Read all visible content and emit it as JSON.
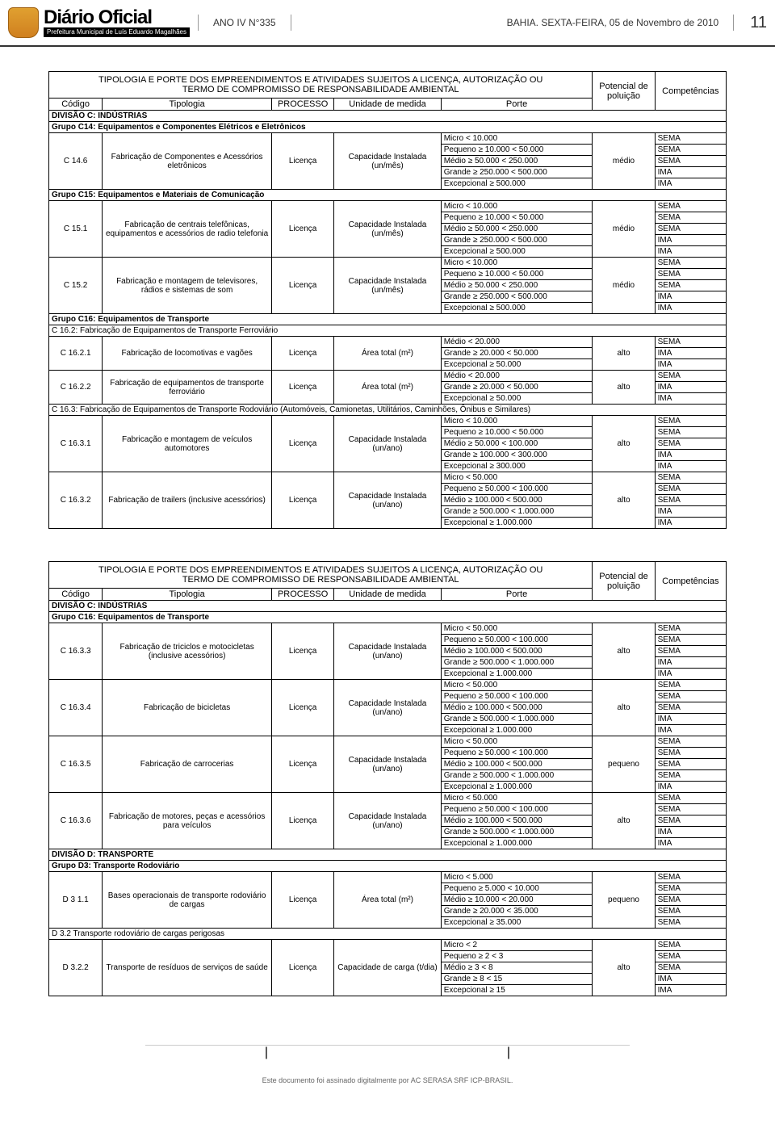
{
  "header": {
    "masthead_title": "Diário Oficial",
    "masthead_sub": "Prefeitura Municipal de Luís Eduardo Magalhães",
    "issue": "ANO IV N°335",
    "dateline": "BAHIA. SEXTA-FEIRA, 05 de Novembro de 2010",
    "page": "11"
  },
  "table_title_l1": "TIPOLOGIA E PORTE DOS EMPREENDIMENTOS E ATIVIDADES SUJEITOS A LICENÇA, AUTORIZAÇÃO OU",
  "table_title_l2": "TERMO DE COMPROMISSO DE RESPONSABILIDADE AMBIENTAL",
  "headers": {
    "codigo": "Código",
    "tipologia": "Tipologia",
    "processo": "PROCESSO",
    "unidade": "Unidade de medida",
    "porte": "Porte",
    "potencial": "Potencial de poluição",
    "comp": "Competências"
  },
  "sections1": [
    "DIVISÃO C: INDÚSTRIAS",
    "Grupo C14: Equipamentos e Componentes Elétricos e Eletrônicos"
  ],
  "t1_rows": [
    {
      "codigo": "C 14.6",
      "tip": "Fabricação de Componentes e Acessórios eletrônicos",
      "proc": "Licença",
      "unid": "Capacidade Instalada (un/mês)",
      "pot": "médio",
      "porte": [
        [
          "Micro < 10.000",
          "SEMA"
        ],
        [
          "Pequeno ≥ 10.000 < 50.000",
          "SEMA"
        ],
        [
          "Médio ≥ 50.000 < 250.000",
          "SEMA"
        ],
        [
          "Grande ≥ 250.000 < 500.000",
          "IMA"
        ],
        [
          "Excepcional ≥ 500.000",
          "IMA"
        ]
      ]
    }
  ],
  "section_c15": "Grupo C15: Equipamentos e Materiais de Comunicação",
  "t1_c15": [
    {
      "codigo": "C 15.1",
      "tip": "Fabricação de centrais telefônicas, equipamentos e acessórios de radio telefonia",
      "proc": "Licença",
      "unid": "Capacidade Instalada (un/mês)",
      "pot": "médio",
      "porte": [
        [
          "Micro < 10.000",
          "SEMA"
        ],
        [
          "Pequeno ≥ 10.000 < 50.000",
          "SEMA"
        ],
        [
          "Médio ≥ 50.000 < 250.000",
          "SEMA"
        ],
        [
          "Grande ≥ 250.000 < 500.000",
          "IMA"
        ],
        [
          "Excepcional ≥ 500.000",
          "IMA"
        ]
      ]
    },
    {
      "codigo": "C 15.2",
      "tip": "Fabricação e montagem de televisores, rádios e sistemas de som",
      "proc": "Licença",
      "unid": "Capacidade Instalada (un/mês)",
      "pot": "médio",
      "porte": [
        [
          "Micro < 10.000",
          "SEMA"
        ],
        [
          "Pequeno ≥ 10.000 < 50.000",
          "SEMA"
        ],
        [
          "Médio ≥ 50.000 < 250.000",
          "SEMA"
        ],
        [
          "Grande ≥ 250.000 < 500.000",
          "IMA"
        ],
        [
          "Excepcional ≥ 500.000",
          "IMA"
        ]
      ]
    }
  ],
  "section_c16": "Grupo C16: Equipamentos de Transporte",
  "section_c162": "C 16.2: Fabricação de Equipamentos de Transporte Ferroviário",
  "t1_c162": [
    {
      "codigo": "C 16.2.1",
      "tip": "Fabricação de locomotivas e vagões",
      "proc": "Licença",
      "unid": "Área total (m²)",
      "pot": "alto",
      "porte": [
        [
          "Médio < 20.000",
          "SEMA"
        ],
        [
          "Grande ≥ 20.000 < 50.000",
          "IMA"
        ],
        [
          "Excepcional ≥ 50.000",
          "IMA"
        ]
      ]
    },
    {
      "codigo": "C 16.2.2",
      "tip": "Fabricação de equipamentos de transporte ferroviário",
      "proc": "Licença",
      "unid": "Área total (m²)",
      "pot": "alto",
      "porte": [
        [
          "Médio < 20.000",
          "SEMA"
        ],
        [
          "Grande ≥ 20.000 < 50.000",
          "IMA"
        ],
        [
          "Excepcional ≥ 50.000",
          "IMA"
        ]
      ]
    }
  ],
  "section_c163": "C 16.3: Fabricação de Equipamentos de Transporte Rodoviário (Automóveis, Camionetas, Utilitários, Caminhões, Ônibus e Similares)",
  "t1_c163": [
    {
      "codigo": "C 16.3.1",
      "tip": "Fabricação e montagem de veículos automotores",
      "proc": "Licença",
      "unid": "Capacidade Instalada (un/ano)",
      "pot": "alto",
      "porte": [
        [
          "Micro < 10.000",
          "SEMA"
        ],
        [
          "Pequeno ≥ 10.000 < 50.000",
          "SEMA"
        ],
        [
          "Médio ≥ 50.000 < 100.000",
          "SEMA"
        ],
        [
          "Grande ≥ 100.000 < 300.000",
          "IMA"
        ],
        [
          "Excepcional ≥ 300.000",
          "IMA"
        ]
      ]
    },
    {
      "codigo": "C 16.3.2",
      "tip": "Fabricação de trailers (inclusive acessórios)",
      "proc": "Licença",
      "unid": "Capacidade Instalada (un/ano)",
      "pot": "alto",
      "porte": [
        [
          "Micro < 50.000",
          "SEMA"
        ],
        [
          "Pequeno ≥ 50.000 < 100.000",
          "SEMA"
        ],
        [
          "Médio ≥ 100.000 < 500.000",
          "SEMA"
        ],
        [
          "Grande ≥ 500.000 < 1.000.000",
          "IMA"
        ],
        [
          "Excepcional ≥ 1.000.000",
          "IMA"
        ]
      ]
    }
  ],
  "sections2": [
    "DIVISÃO C: INDÚSTRIAS",
    "Grupo C16: Equipamentos de Transporte"
  ],
  "t2_rows": [
    {
      "codigo": "C 16.3.3",
      "tip": "Fabricação de triciclos e motocicletas (inclusive acessórios)",
      "proc": "Licença",
      "unid": "Capacidade Instalada (un/ano)",
      "pot": "alto",
      "porte": [
        [
          "Micro < 50.000",
          "SEMA"
        ],
        [
          "Pequeno ≥ 50.000 < 100.000",
          "SEMA"
        ],
        [
          "Médio ≥ 100.000 < 500.000",
          "SEMA"
        ],
        [
          "Grande ≥ 500.000 < 1.000.000",
          "IMA"
        ],
        [
          "Excepcional ≥ 1.000.000",
          "IMA"
        ]
      ]
    },
    {
      "codigo": "C 16.3.4",
      "tip": "Fabricação de bicicletas",
      "proc": "Licença",
      "unid": "Capacidade Instalada (un/ano)",
      "pot": "alto",
      "porte": [
        [
          "Micro < 50.000",
          "SEMA"
        ],
        [
          "Pequeno ≥ 50.000 < 100.000",
          "SEMA"
        ],
        [
          "Médio ≥ 100.000 < 500.000",
          "SEMA"
        ],
        [
          "Grande ≥ 500.000 < 1.000.000",
          "IMA"
        ],
        [
          "Excepcional ≥ 1.000.000",
          "IMA"
        ]
      ]
    },
    {
      "codigo": "C 16.3.5",
      "tip": "Fabricação de carrocerias",
      "proc": "Licença",
      "unid": "Capacidade Instalada (un/ano)",
      "pot": "pequeno",
      "porte": [
        [
          "Micro < 50.000",
          "SEMA"
        ],
        [
          "Pequeno ≥ 50.000 < 100.000",
          "SEMA"
        ],
        [
          "Médio ≥ 100.000 < 500.000",
          "SEMA"
        ],
        [
          "Grande ≥ 500.000 < 1.000.000",
          "SEMA"
        ],
        [
          "Excepcional ≥ 1.000.000",
          "IMA"
        ]
      ]
    },
    {
      "codigo": "C 16.3.6",
      "tip": "Fabricação de motores, peças e acessórios para veículos",
      "proc": "Licença",
      "unid": "Capacidade Instalada (un/ano)",
      "pot": "alto",
      "porte": [
        [
          "Micro < 50.000",
          "SEMA"
        ],
        [
          "Pequeno ≥ 50.000 < 100.000",
          "SEMA"
        ],
        [
          "Médio ≥ 100.000 < 500.000",
          "SEMA"
        ],
        [
          "Grande ≥ 500.000 < 1.000.000",
          "IMA"
        ],
        [
          "Excepcional ≥ 1.000.000",
          "IMA"
        ]
      ]
    }
  ],
  "section_d": "DIVISÃO D: TRANSPORTE",
  "section_d3": "Grupo D3: Transporte Rodoviário",
  "t2_d3": [
    {
      "codigo": "D 3 1.1",
      "tip": "Bases operacionais de transporte rodoviário de cargas",
      "proc": "Licença",
      "unid": "Área total (m²)",
      "pot": "pequeno",
      "porte": [
        [
          "Micro < 5.000",
          "SEMA"
        ],
        [
          "Pequeno ≥ 5.000 < 10.000",
          "SEMA"
        ],
        [
          "Médio ≥ 10.000 < 20.000",
          "SEMA"
        ],
        [
          "Grande ≥ 20.000 < 35.000",
          "SEMA"
        ],
        [
          "Excepcional ≥ 35.000",
          "SEMA"
        ]
      ]
    }
  ],
  "section_d32": "D 3.2 Transporte rodoviário de cargas perigosas",
  "t2_d32": [
    {
      "codigo": "D 3.2.2",
      "tip": "Transporte de resíduos de serviços de saúde",
      "proc": "Licença",
      "unid": "Capacidade de carga (t/dia)",
      "pot": "alto",
      "porte": [
        [
          "Micro < 2",
          "SEMA"
        ],
        [
          "Pequeno ≥ 2 < 3",
          "SEMA"
        ],
        [
          "Médio ≥ 3 < 8",
          "SEMA"
        ],
        [
          "Grande ≥ 8 < 15",
          "IMA"
        ],
        [
          "Excepcional ≥ 15",
          "IMA"
        ]
      ]
    }
  ],
  "footer": "Este documento foi assinado digitalmente por AC SERASA SRF ICP-BRASIL."
}
